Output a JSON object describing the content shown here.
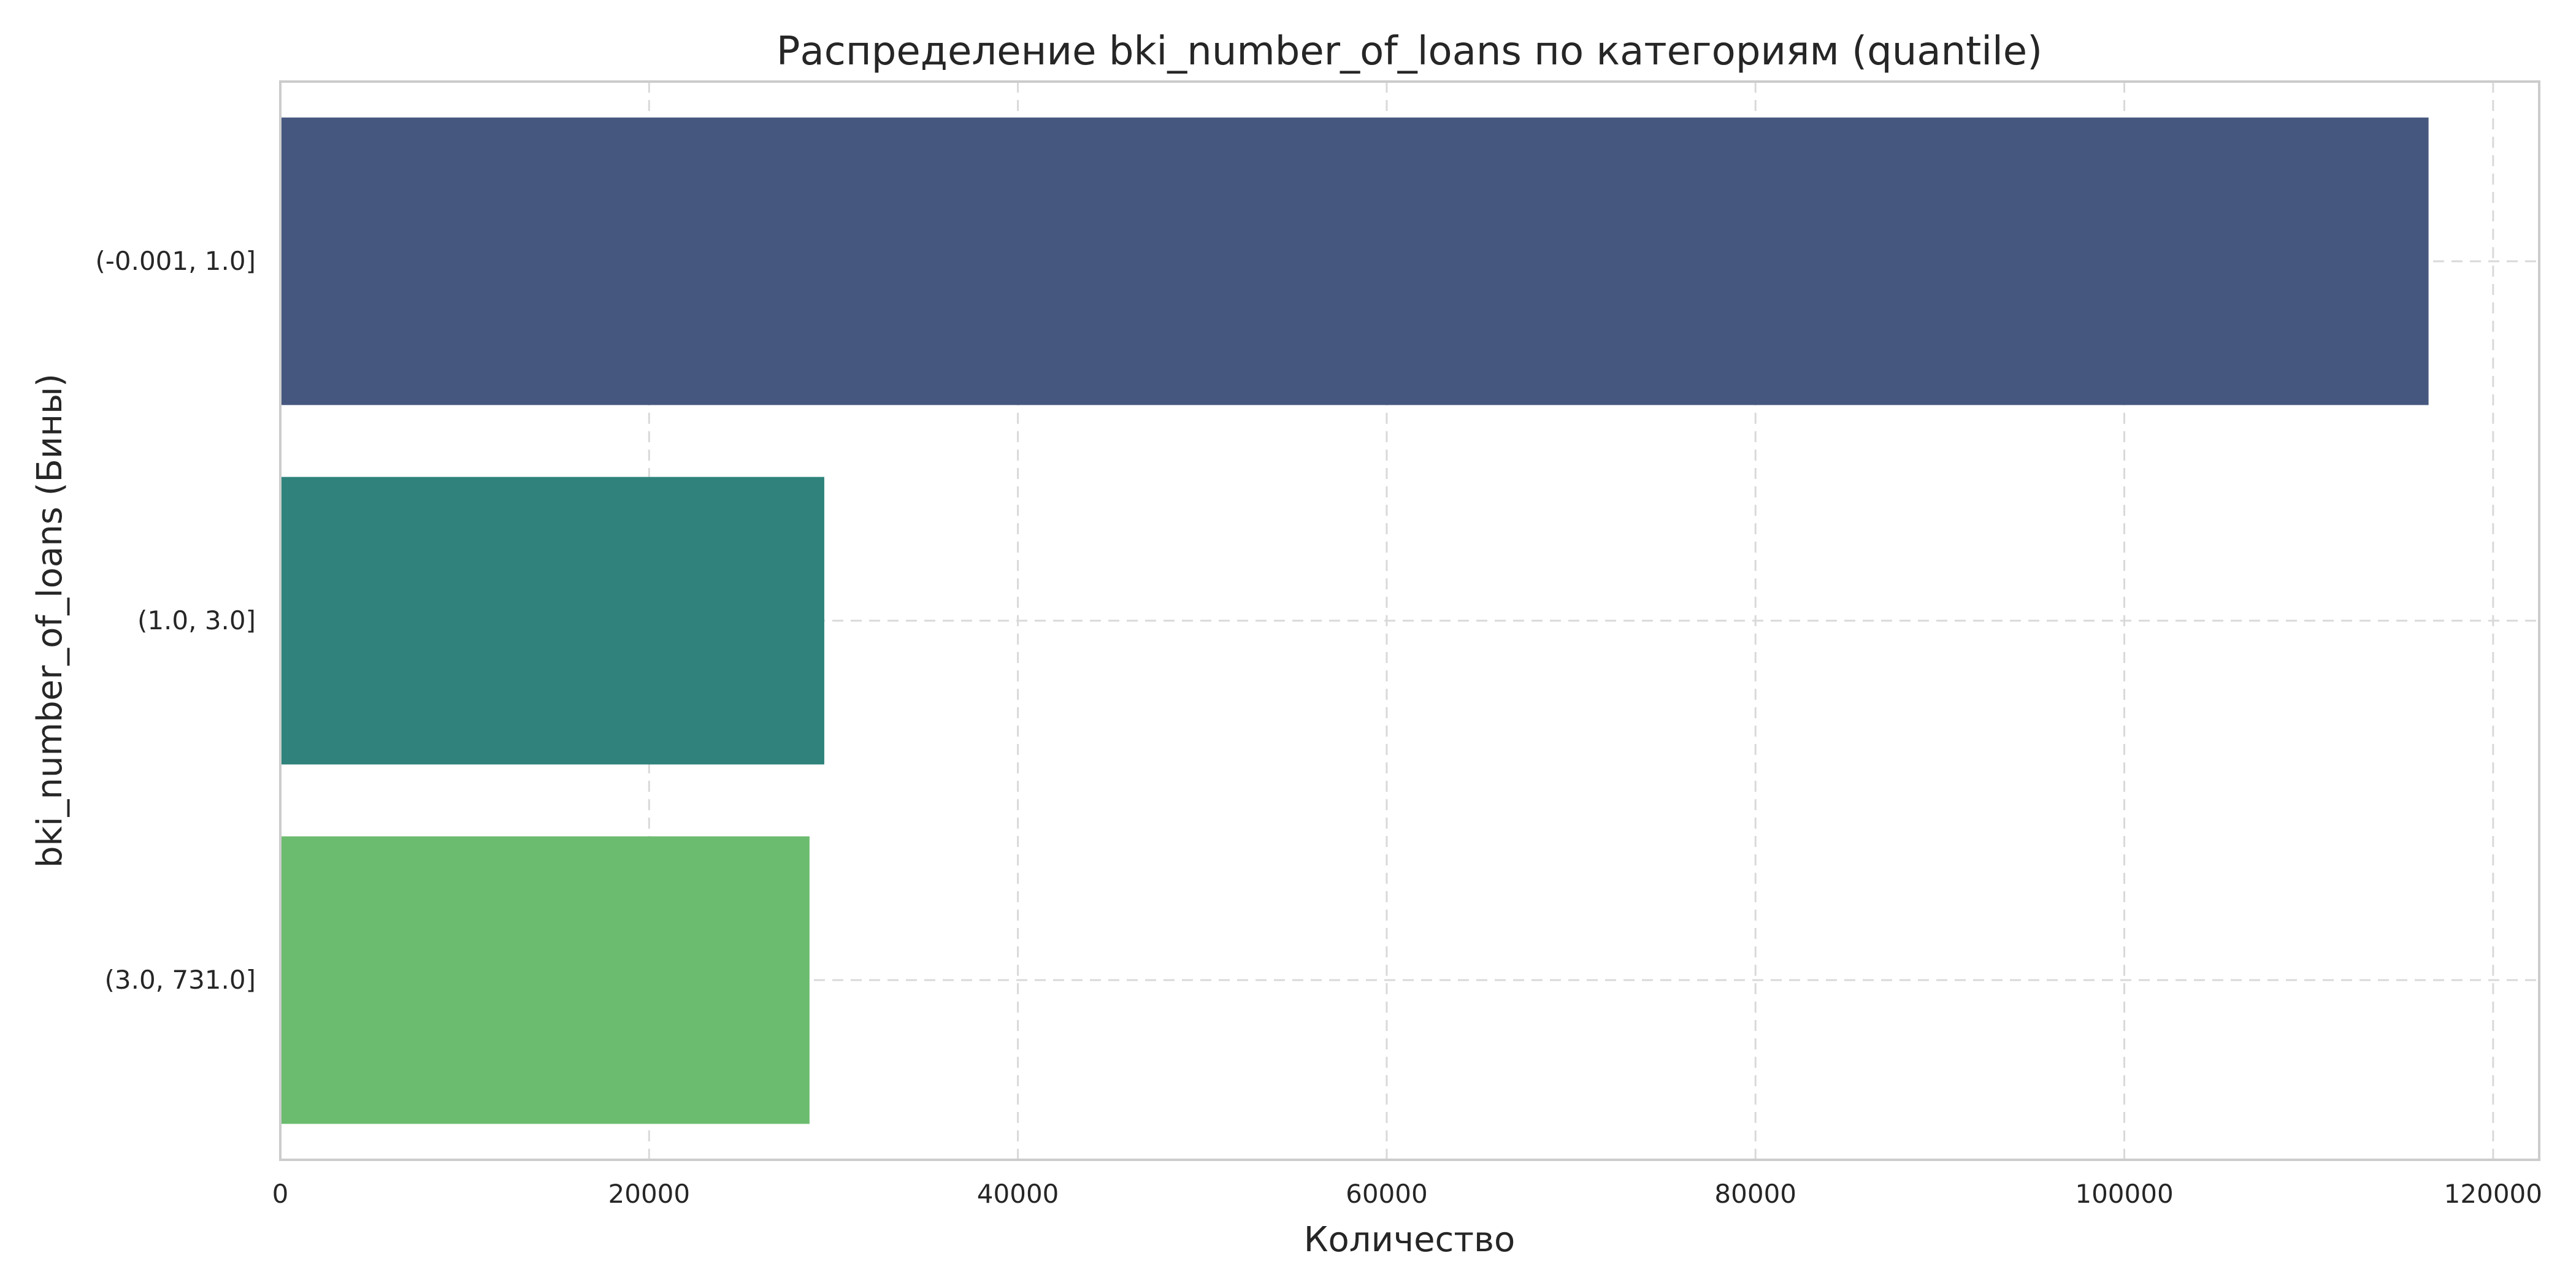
{
  "chart_data": {
    "type": "bar",
    "orientation": "horizontal",
    "title": "Распределение bki_number_of_loans по категориям (quantile)",
    "xlabel": "Количество",
    "ylabel": "bki_number_of_loans (Бины)",
    "categories": [
      "(-0.001, 1.0]",
      "(1.0, 3.0]",
      "(3.0, 731.0]"
    ],
    "values": [
      116500,
      29500,
      28700
    ],
    "colors": [
      "#46577f",
      "#2f837c",
      "#6cbc6f"
    ],
    "xlim": [
      0,
      122500
    ],
    "xticks": [
      0,
      20000,
      40000,
      60000,
      80000,
      100000,
      120000
    ],
    "xtick_labels": [
      "0",
      "20000",
      "40000",
      "60000",
      "80000",
      "100000",
      "120000"
    ],
    "grid": true,
    "legend": "none"
  }
}
